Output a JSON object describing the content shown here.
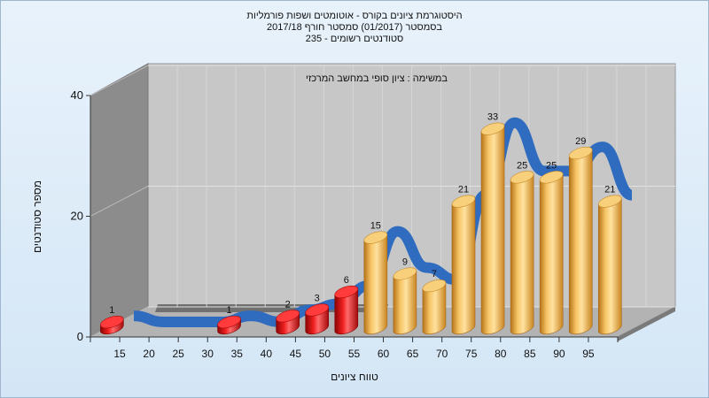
{
  "header": {
    "title_line1": "היסטוגרמת ציונים בקורס - אוטומטים ושפות פורמליות",
    "title_line2": "בסמסטר  (01/2017)  סמסטר חורף 2017/18",
    "title_line3": "סטודנטים רשומים - 235"
  },
  "chart_data": {
    "type": "bar",
    "subtitle": "במשימה : ציון סופי במחשב המרכזי",
    "xlabel": "טווח ציונים",
    "ylabel": "מספר סטודנטים",
    "ylim": [
      0,
      40
    ],
    "y_ticks": [
      "0",
      "20",
      "40"
    ],
    "x_tick_labels": [
      "15",
      "20",
      "25",
      "30",
      "35",
      "40",
      "45",
      "50",
      "55",
      "60",
      "65",
      "70",
      "75",
      "80",
      "85",
      "90",
      "95"
    ],
    "categories": [
      "0-15",
      "15-20",
      "20-25",
      "25-30",
      "30-35",
      "35-40",
      "40-45",
      "45-50",
      "50-55",
      "55-60",
      "60-65",
      "65-70",
      "70-75",
      "75-80",
      "80-85",
      "85-90",
      "90-95",
      "95-100"
    ],
    "values": [
      1,
      0,
      0,
      0,
      1,
      0,
      2,
      3,
      6,
      15,
      9,
      7,
      21,
      33,
      25,
      25,
      29,
      21
    ],
    "bar_colors": {
      "fail": "#d01010",
      "pass": "#e6a030"
    },
    "fail_threshold": 55,
    "curve_color": "#2f6cc0",
    "grid": true
  }
}
